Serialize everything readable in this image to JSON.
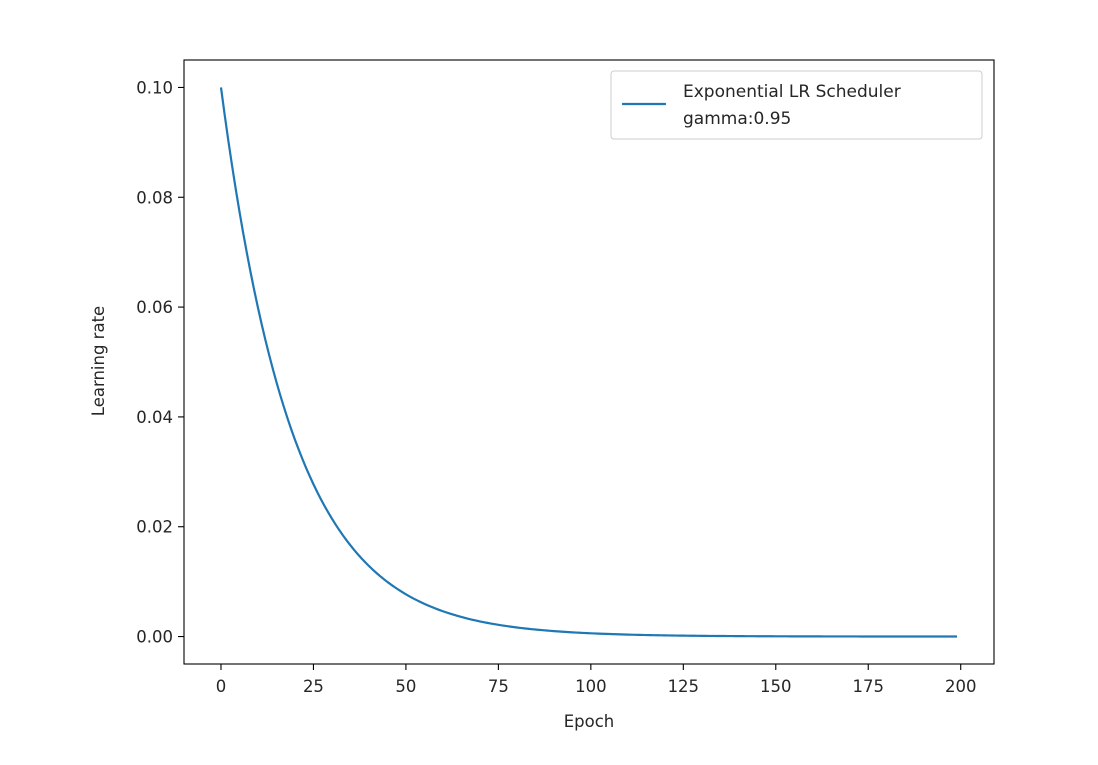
{
  "chart_data": {
    "type": "line",
    "title": "",
    "xlabel": "Epoch",
    "ylabel": "Learning rate",
    "xlim": [
      -10,
      209
    ],
    "ylim": [
      -0.005,
      0.105
    ],
    "x_ticks": [
      0,
      25,
      50,
      75,
      100,
      125,
      150,
      175,
      200
    ],
    "y_ticks": [
      0.0,
      0.02,
      0.04,
      0.06,
      0.08,
      0.1
    ],
    "y_tick_labels": [
      "0.00",
      "0.02",
      "0.04",
      "0.06",
      "0.08",
      "0.10"
    ],
    "grid": false,
    "legend_position": "top-right",
    "series": [
      {
        "name": "Exponential LR Scheduler",
        "name_line2": "gamma:0.95",
        "color": "#1f77b4",
        "initial_lr": 0.1,
        "gamma": 0.95,
        "epochs": 200,
        "x": [
          0,
          5,
          10,
          15,
          20,
          25,
          30,
          40,
          50,
          60,
          75,
          100,
          125,
          150,
          175,
          199
        ],
        "y": [
          0.1,
          0.0774,
          0.0599,
          0.0463,
          0.0358,
          0.0277,
          0.0215,
          0.0129,
          0.0077,
          0.0046,
          0.0021,
          0.0006,
          0.0002,
          5e-05,
          1e-05,
          0.0
        ]
      }
    ]
  }
}
